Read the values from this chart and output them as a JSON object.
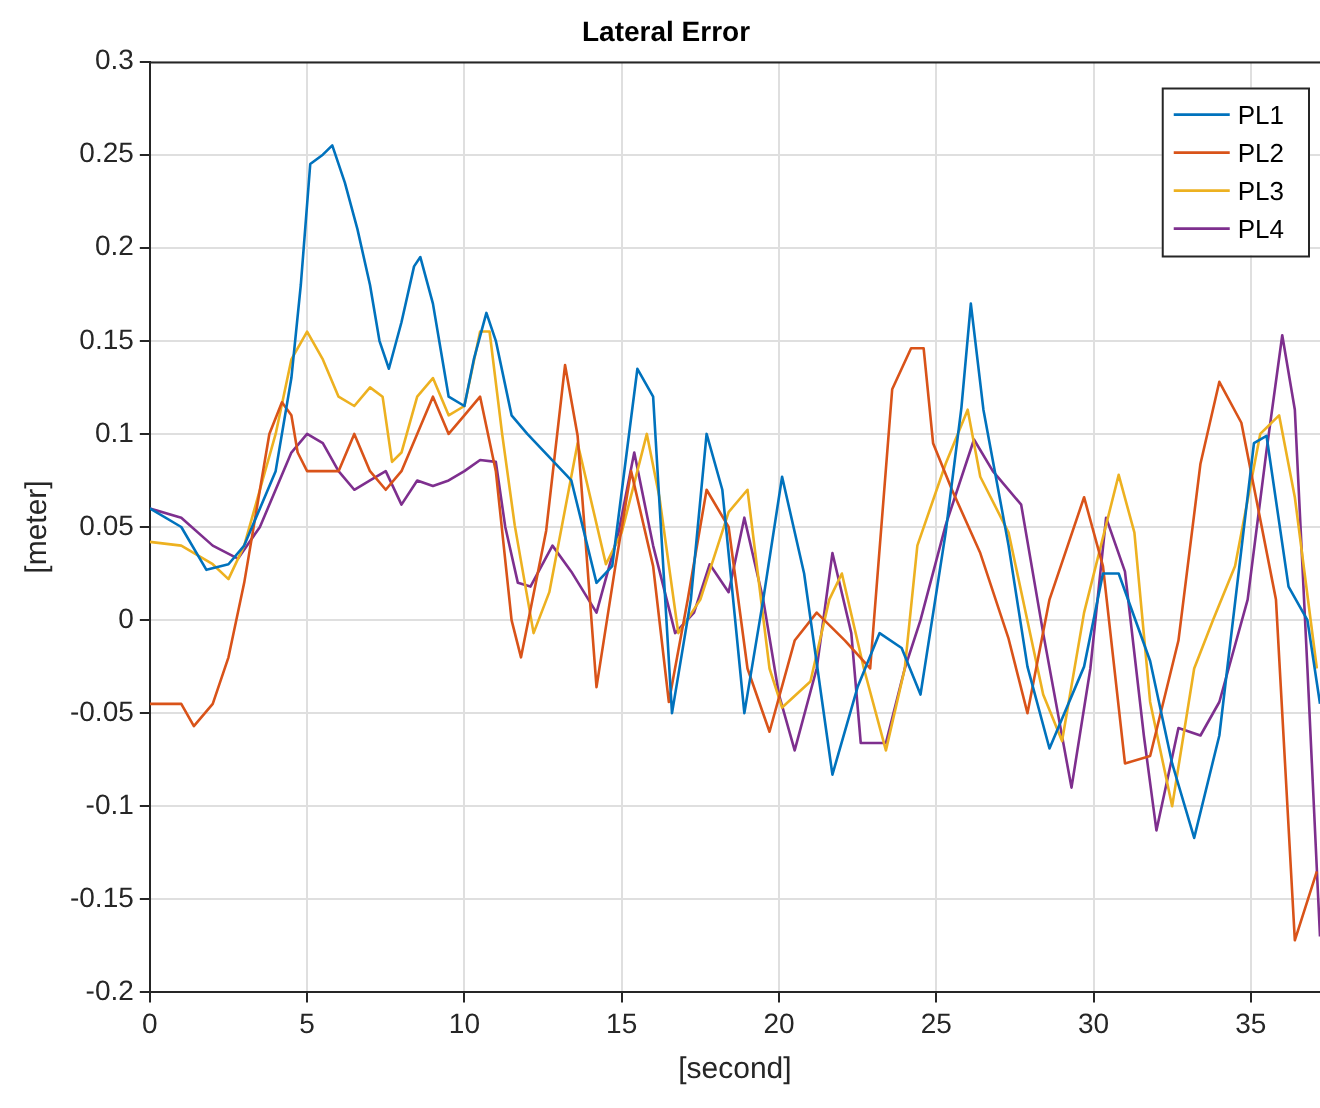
{
  "chart_data": {
    "type": "line",
    "title": "Lateral Error",
    "xlabel": "[second]",
    "ylabel": "[meter]",
    "xlim": [
      0,
      37.2
    ],
    "xticks": [
      0,
      5,
      10,
      15,
      20,
      25,
      30,
      35
    ],
    "ylim": [
      -0.2,
      0.3
    ],
    "yticks": [
      -0.2,
      -0.15,
      -0.1,
      -0.05,
      0,
      0.05,
      0.1,
      0.15,
      0.2,
      0.25,
      0.3
    ],
    "grid": true,
    "legend": "top right",
    "marker": "none",
    "line_style": "solid",
    "series": [
      {
        "name": "PL1",
        "color": "#0072bd",
        "x": [
          0,
          1,
          1.8,
          2.5,
          3,
          3.5,
          4,
          4.5,
          4.8,
          5.1,
          5.5,
          5.8,
          6.2,
          6.6,
          7,
          7.3,
          7.6,
          8,
          8.4,
          8.6,
          9,
          9.3,
          9.5,
          10,
          10.3,
          10.7,
          11,
          11.5,
          12,
          13.4,
          14.2,
          14.7,
          15.5,
          16,
          16.6,
          17.2,
          17.7,
          18.2,
          18.9,
          19.5,
          20.1,
          20.8,
          21.7,
          22.5,
          23.2,
          23.9,
          24.5,
          25.3,
          25.8,
          26.1,
          26.5,
          27.3,
          27.9,
          28.6,
          29.7,
          30.3,
          30.8,
          31.8,
          32.5,
          33.2,
          34,
          35.1,
          35.5,
          36.2,
          36.8,
          37.2
        ],
        "values": [
          0.06,
          0.05,
          0.027,
          0.03,
          0.04,
          0.06,
          0.08,
          0.13,
          0.18,
          0.245,
          0.25,
          0.255,
          0.235,
          0.21,
          0.18,
          0.15,
          0.135,
          0.16,
          0.19,
          0.195,
          0.17,
          0.14,
          0.12,
          0.115,
          0.14,
          0.165,
          0.15,
          0.11,
          0.1,
          0.075,
          0.02,
          0.029,
          0.135,
          0.12,
          -0.05,
          0.011,
          0.1,
          0.07,
          -0.05,
          0.011,
          0.077,
          0.025,
          -0.083,
          -0.036,
          -0.007,
          -0.015,
          -0.04,
          0.047,
          0.114,
          0.17,
          0.113,
          0.04,
          -0.025,
          -0.069,
          -0.025,
          0.025,
          0.025,
          -0.022,
          -0.077,
          -0.117,
          -0.062,
          0.095,
          0.099,
          0.018,
          0,
          -0.045
        ]
      },
      {
        "name": "PL2",
        "color": "#d95319",
        "x": [
          0,
          1,
          1.4,
          2,
          2.5,
          3,
          3.5,
          3.8,
          4.2,
          4.5,
          4.7,
          5,
          5.5,
          6,
          6.5,
          7,
          7.5,
          8,
          8.5,
          9,
          9.5,
          10,
          10.5,
          11,
          11.5,
          11.8,
          12.6,
          13.2,
          13.6,
          14.2,
          14.8,
          15.3,
          16,
          16.5,
          17.1,
          17.7,
          18.4,
          19,
          19.7,
          20.5,
          21.2,
          22.1,
          22.9,
          23.6,
          24.2,
          24.6,
          24.9,
          25.5,
          26.4,
          27.3,
          27.9,
          28.6,
          29.7,
          30.3,
          31,
          31.8,
          32.7,
          33.4,
          34,
          34.7,
          35.8,
          36.4,
          37.1
        ],
        "values": [
          -0.045,
          -0.045,
          -0.057,
          -0.045,
          -0.02,
          0.02,
          0.07,
          0.1,
          0.117,
          0.11,
          0.09,
          0.08,
          0.08,
          0.08,
          0.1,
          0.08,
          0.07,
          0.08,
          0.1,
          0.12,
          0.1,
          0.11,
          0.12,
          0.08,
          0,
          -0.02,
          0.048,
          0.137,
          0.099,
          -0.036,
          0.029,
          0.08,
          0.029,
          -0.044,
          0.011,
          0.07,
          0.05,
          -0.026,
          -0.06,
          -0.011,
          0.004,
          -0.011,
          -0.026,
          0.124,
          0.146,
          0.146,
          0.095,
          0.07,
          0.036,
          -0.01,
          -0.05,
          0.011,
          0.066,
          0.029,
          -0.077,
          -0.073,
          -0.011,
          0.084,
          0.128,
          0.106,
          0.011,
          -0.172,
          -0.135
        ]
      },
      {
        "name": "PL3",
        "color": "#edb120",
        "x": [
          0,
          1,
          2,
          2.5,
          3,
          3.5,
          4,
          4.5,
          5,
          5.5,
          6,
          6.5,
          7,
          7.4,
          7.7,
          8,
          8.5,
          9,
          9.5,
          10,
          10.5,
          10.8,
          11.2,
          11.6,
          12.2,
          12.7,
          13.6,
          14.5,
          15,
          15.8,
          16.2,
          16.8,
          17.5,
          18.4,
          19,
          19.7,
          20.1,
          21,
          21.6,
          22,
          22.7,
          23.4,
          24,
          24.4,
          25.3,
          26,
          26.4,
          27.3,
          28.4,
          29,
          29.7,
          30.8,
          31.3,
          31.8,
          32.5,
          33.2,
          33.8,
          34.5,
          35.3,
          35.9,
          36.4,
          37.1
        ],
        "values": [
          0.042,
          0.04,
          0.03,
          0.022,
          0.04,
          0.07,
          0.1,
          0.14,
          0.155,
          0.14,
          0.12,
          0.115,
          0.125,
          0.12,
          0.085,
          0.09,
          0.12,
          0.13,
          0.11,
          0.115,
          0.155,
          0.155,
          0.1,
          0.051,
          -0.007,
          0.015,
          0.095,
          0.03,
          0.047,
          0.1,
          0.066,
          -0.007,
          0.011,
          0.058,
          0.07,
          -0.026,
          -0.047,
          -0.033,
          0.011,
          0.025,
          -0.026,
          -0.07,
          -0.026,
          0.04,
          0.084,
          0.113,
          0.077,
          0.047,
          -0.04,
          -0.065,
          0.004,
          0.078,
          0.047,
          -0.044,
          -0.1,
          -0.026,
          0,
          0.029,
          0.1,
          0.11,
          0.066,
          -0.026
        ]
      },
      {
        "name": "PL4",
        "color": "#7e2f8e",
        "x": [
          0,
          1,
          2,
          2.8,
          3.5,
          4,
          4.5,
          5,
          5.5,
          6,
          6.5,
          7,
          7.5,
          8,
          8.5,
          9,
          9.5,
          10,
          10.5,
          11,
          11.3,
          11.7,
          12.1,
          12.8,
          13.4,
          14.2,
          14.9,
          15.4,
          16,
          16.7,
          17.3,
          17.8,
          18.4,
          18.9,
          19.5,
          20,
          20.5,
          21.2,
          21.7,
          22.3,
          22.6,
          23.4,
          24,
          24.5,
          25.3,
          26.2,
          26.8,
          27.7,
          28.4,
          29.3,
          29.9,
          30.4,
          31,
          31.6,
          32,
          32.7,
          33.4,
          34,
          34.9,
          35.5,
          36,
          36.4,
          36.8,
          37.2
        ],
        "values": [
          0.06,
          0.055,
          0.04,
          0.033,
          0.05,
          0.07,
          0.09,
          0.1,
          0.095,
          0.08,
          0.07,
          0.075,
          0.08,
          0.062,
          0.075,
          0.072,
          0.075,
          0.08,
          0.086,
          0.085,
          0.05,
          0.02,
          0.018,
          0.04,
          0.026,
          0.004,
          0.047,
          0.09,
          0.04,
          -0.007,
          0.004,
          0.03,
          0.015,
          0.055,
          0.011,
          -0.04,
          -0.07,
          -0.026,
          0.036,
          -0.007,
          -0.066,
          -0.066,
          -0.026,
          0,
          0.051,
          0.097,
          0.08,
          0.062,
          -0.007,
          -0.09,
          -0.026,
          0.055,
          0.026,
          -0.062,
          -0.113,
          -0.058,
          -0.062,
          -0.044,
          0.011,
          0.091,
          0.153,
          0.113,
          -0.026,
          -0.17
        ]
      }
    ]
  }
}
